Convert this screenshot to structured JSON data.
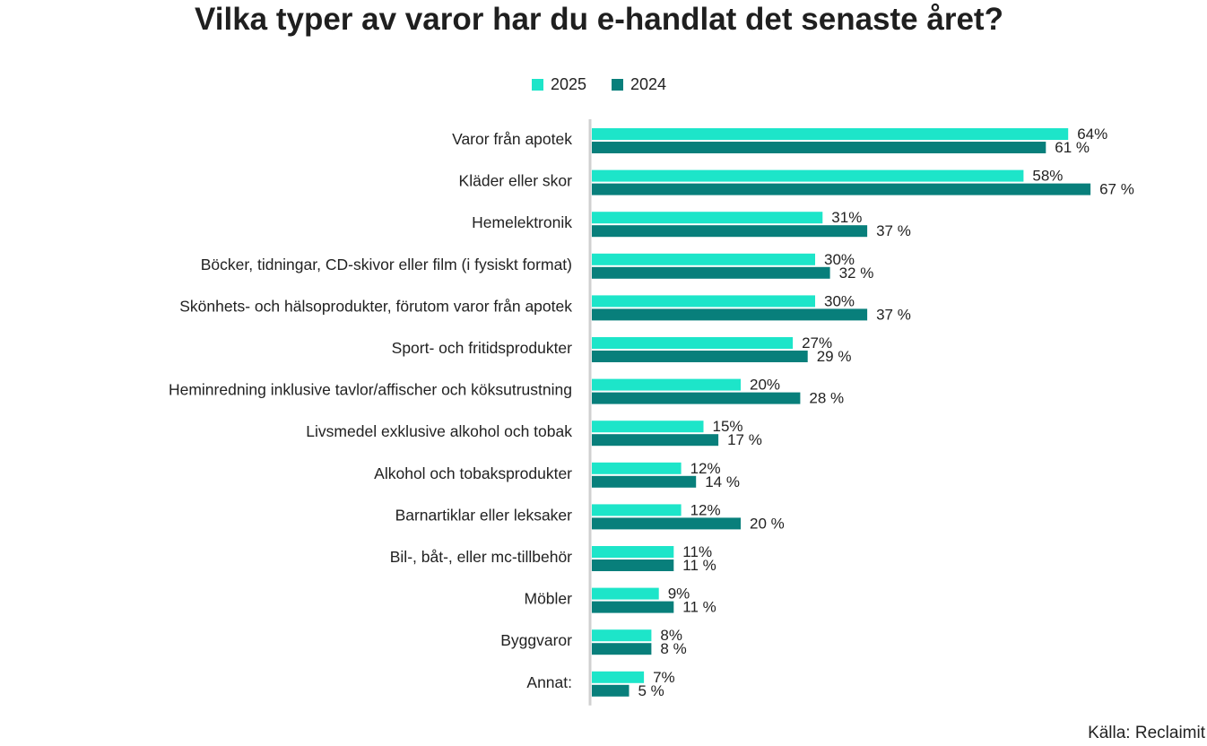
{
  "chart_data": {
    "type": "bar",
    "orientation": "horizontal",
    "title": "Vilka typer av varor har du e-handlat det senaste året?",
    "source": "Källa: Reclaimit",
    "legend_position": "top-center",
    "grid": false,
    "xlim": [
      0,
      100
    ],
    "categories": [
      "Varor från apotek",
      "Kläder eller skor",
      "Hemelektronik",
      "Böcker, tidningar, CD-skivor eller film (i fysiskt format)",
      "Skönhets- och hälsoprodukter, förutom varor från apotek",
      "Sport- och fritidsprodukter",
      "Heminredning inklusive tavlor/affischer och köksutrustning",
      "Livsmedel exklusive alkohol och tobak",
      "Alkohol och tobaksprodukter",
      "Barnartiklar eller leksaker",
      "Bil-, båt-, eller mc-tillbehör",
      "Möbler",
      "Byggvaror",
      "Annat:"
    ],
    "series": [
      {
        "name": "2025",
        "color": "#1de5c9",
        "values": [
          64,
          58,
          31,
          30,
          30,
          27,
          20,
          15,
          12,
          12,
          11,
          9,
          8,
          7
        ],
        "labels": [
          "64%",
          "58%",
          "31%",
          "30%",
          "30%",
          "27%",
          "20%",
          "15%",
          "12%",
          "12%",
          "11%",
          "9%",
          "8%",
          "7%"
        ]
      },
      {
        "name": "2024",
        "color": "#087f7b",
        "values": [
          61,
          67,
          37,
          32,
          37,
          29,
          28,
          17,
          14,
          20,
          11,
          11,
          8,
          5
        ],
        "labels": [
          "61 %",
          "67 %",
          "37 %",
          "32 %",
          "37 %",
          "29 %",
          "28 %",
          "17 %",
          "14 %",
          "20 %",
          "11 %",
          "11 %",
          "8 %",
          "5 %"
        ]
      }
    ],
    "axis_color": "#d0d0d0"
  }
}
